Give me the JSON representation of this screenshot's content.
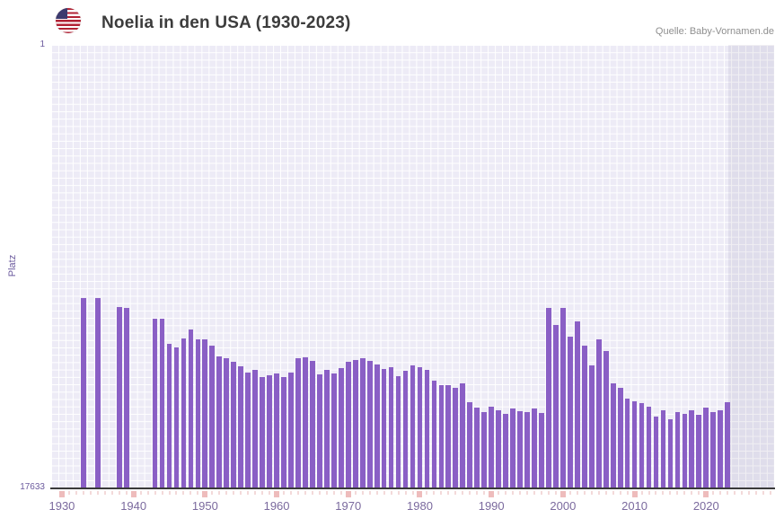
{
  "header": {
    "title": "Noelia in den USA (1930-2023)",
    "source": "Quelle: Baby-Vornamen.de",
    "flag_icon": "us-flag-icon"
  },
  "colors": {
    "bar": "#8a5fc5",
    "plot_background": "#edebf6",
    "gridline": "#ffffff",
    "axis_label": "#7b6a9e",
    "highlight_band": "rgba(105,95,140,0.10)"
  },
  "chart_data": {
    "type": "bar",
    "title": "Noelia in den USA (1930-2023)",
    "xlabel": "",
    "ylabel": "Platz",
    "y_axis": {
      "top_label": "1",
      "bottom_label": "17633",
      "min": 1,
      "max": 17633,
      "scale": "log",
      "inverted": true
    },
    "x_axis": {
      "domain_start": 1929,
      "domain_end": 2030,
      "tick_years": [
        1930,
        1940,
        1950,
        1960,
        1970,
        1980,
        1990,
        2000,
        2010,
        2020
      ]
    },
    "highlight_band": {
      "from": 2023.6,
      "to": 2030
    },
    "legend": "none",
    "grid": true,
    "years": [
      1930,
      1931,
      1932,
      1933,
      1934,
      1935,
      1936,
      1937,
      1938,
      1939,
      1940,
      1941,
      1942,
      1943,
      1944,
      1945,
      1946,
      1947,
      1948,
      1949,
      1950,
      1951,
      1952,
      1953,
      1954,
      1955,
      1956,
      1957,
      1958,
      1959,
      1960,
      1961,
      1962,
      1963,
      1964,
      1965,
      1966,
      1967,
      1968,
      1969,
      1970,
      1971,
      1972,
      1973,
      1974,
      1975,
      1976,
      1977,
      1978,
      1979,
      1980,
      1981,
      1982,
      1983,
      1984,
      1985,
      1986,
      1987,
      1988,
      1989,
      1990,
      1991,
      1992,
      1993,
      1994,
      1995,
      1996,
      1997,
      1998,
      1999,
      2000,
      2001,
      2002,
      2003,
      2004,
      2005,
      2006,
      2007,
      2008,
      2009,
      2010,
      2011,
      2012,
      2013,
      2014,
      2015,
      2016,
      2017,
      2018,
      2019,
      2020,
      2021,
      2022,
      2023
    ],
    "ranks": [
      null,
      null,
      null,
      270,
      null,
      270,
      null,
      null,
      330,
      335,
      null,
      null,
      null,
      420,
      425,
      740,
      800,
      655,
      540,
      670,
      670,
      770,
      975,
      1015,
      1100,
      1215,
      1390,
      1320,
      1540,
      1480,
      1420,
      1540,
      1390,
      1015,
      990,
      1080,
      1450,
      1320,
      1420,
      1270,
      1100,
      1050,
      1015,
      1080,
      1170,
      1295,
      1240,
      1510,
      1345,
      1195,
      1240,
      1320,
      1665,
      1840,
      1840,
      1950,
      1770,
      2680,
      3020,
      3335,
      2950,
      3200,
      3470,
      3090,
      3270,
      3335,
      3090,
      3400,
      335,
      490,
      335,
      630,
      445,
      770,
      1195,
      670,
      865,
      1770,
      1950,
      2480,
      2620,
      2720,
      2950,
      3680,
      3200,
      3910,
      3335,
      3470,
      3200,
      3540,
      3020,
      3335,
      3200,
      2680
    ]
  }
}
